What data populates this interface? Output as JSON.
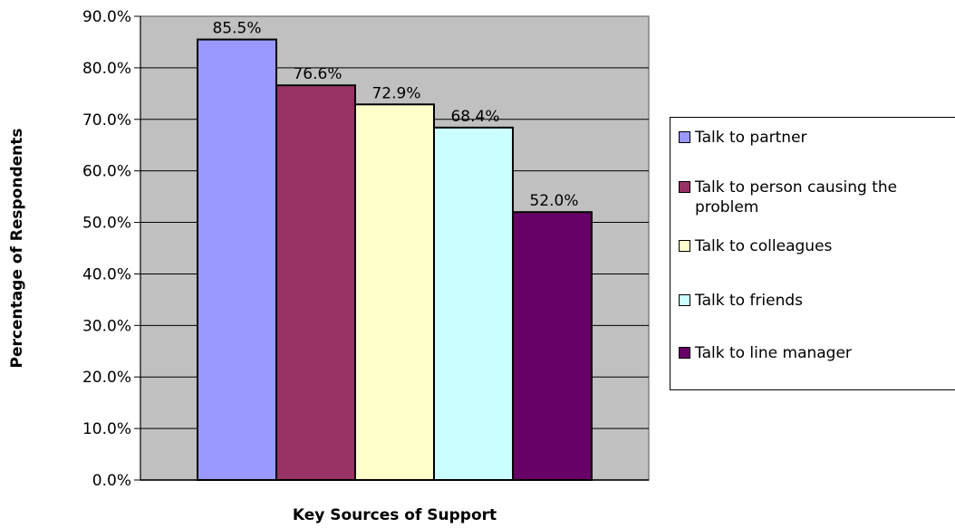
{
  "chart_data": {
    "type": "bar",
    "title": "",
    "xlabel": "Key Sources of Support",
    "ylabel": "Percentage of Respondents",
    "ylim": [
      0,
      90
    ],
    "yticks": [
      "0.0%",
      "10.0%",
      "20.0%",
      "30.0%",
      "40.0%",
      "50.0%",
      "60.0%",
      "70.0%",
      "80.0%",
      "90.0%"
    ],
    "grid": true,
    "legend_position": "right",
    "series": [
      {
        "name": "Talk to partner",
        "value": 85.5,
        "label": "85.5%",
        "color": "#9999ff"
      },
      {
        "name": "Talk to person causing the problem",
        "value": 76.6,
        "label": "76.6%",
        "color": "#993366"
      },
      {
        "name": "Talk to colleagues",
        "value": 72.9,
        "label": "72.9%",
        "color": "#ffffcc"
      },
      {
        "name": "Talk to friends",
        "value": 68.4,
        "label": "68.4%",
        "color": "#ccffff"
      },
      {
        "name": "Talk to line manager",
        "value": 52.0,
        "label": "52.0%",
        "color": "#660066"
      }
    ],
    "plot_background": "#c0c0c0"
  }
}
